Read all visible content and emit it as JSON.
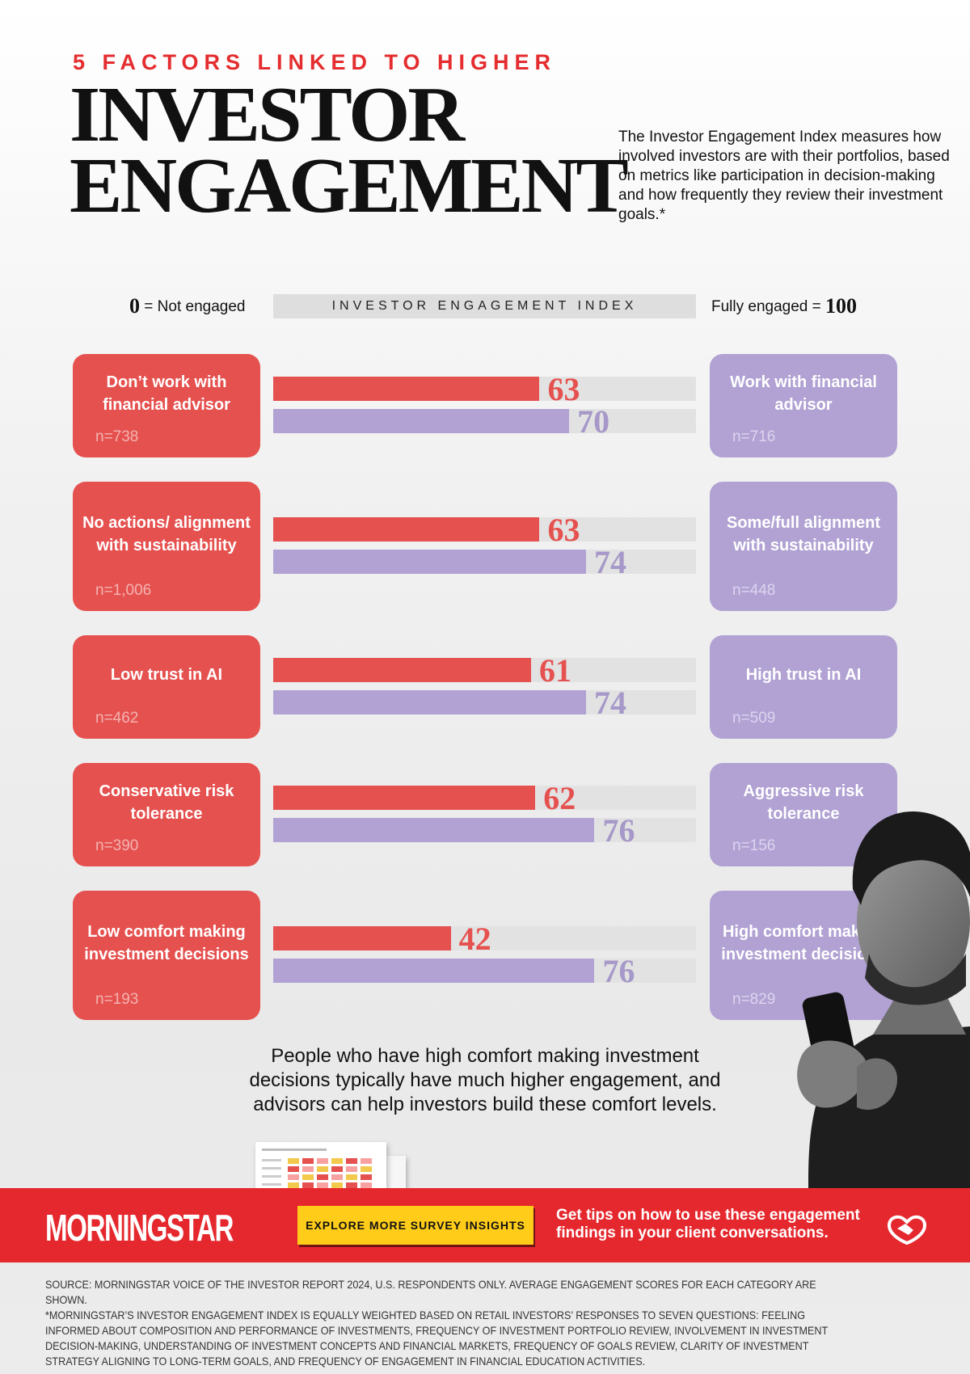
{
  "header": {
    "kicker": "5 FACTORS LINKED TO HIGHER",
    "title_line1": "INVESTOR",
    "title_line2": "ENGAGEMENT",
    "intro": "The Investor Engagement Index measures how involved investors are with their portfolios, based on metrics like participation in decision-making and how frequently they review their investment goals.*"
  },
  "scale": {
    "min_num": "0",
    "min_label": "= Not engaged",
    "bar_label": "INVESTOR ENGAGEMENT INDEX",
    "max_label": "Fully engaged =",
    "max_num": "100"
  },
  "chart_data": {
    "type": "bar",
    "orientation": "horizontal",
    "title": "INVESTOR ENGAGEMENT INDEX",
    "xlim": [
      0,
      100
    ],
    "colors": {
      "low_group": "#e5514f",
      "high_group": "#b1a2d3"
    },
    "groups": [
      {
        "low_label": "Don’t work with financial advisor",
        "low_n": "n=738",
        "low_value": 63,
        "high_label": "Work with financial advisor",
        "high_n": "n=716",
        "high_value": 70
      },
      {
        "low_label": "No actions/ alignment with sustainability",
        "low_n": "n=1,006",
        "low_value": 63,
        "high_label": "Some/full alignment with sustainability",
        "high_n": "n=448",
        "high_value": 74
      },
      {
        "low_label": "Low trust in AI",
        "low_n": "n=462",
        "low_value": 61,
        "high_label": "High trust in AI",
        "high_n": "n=509",
        "high_value": 74
      },
      {
        "low_label": "Conservative risk tolerance",
        "low_n": "n=390",
        "low_value": 62,
        "high_label": "Aggressive risk tolerance",
        "high_n": "n=156",
        "high_value": 76
      },
      {
        "low_label": "Low comfort making investment decisions",
        "low_n": "n=193",
        "low_value": 42,
        "high_label": "High comfort making investment decisions",
        "high_n": "n=829",
        "high_value": 76
      }
    ]
  },
  "takeaway": "People who have high comfort making investment decisions typically have much higher engagement, and advisors can help investors build these comfort levels.",
  "banner": {
    "logo": "MORNINGSTAR",
    "cta_label": "EXPLORE MORE SURVEY INSIGHTS",
    "text": "Get tips on how to use these engagement findings in your client conversations.",
    "icon": "handshake-icon"
  },
  "footnotes": {
    "source": "SOURCE: MORNINGSTAR VOICE OF THE INVESTOR REPORT 2024, U.S. RESPONDENTS ONLY. AVERAGE ENGAGEMENT SCORES FOR EACH CATEGORY ARE SHOWN.",
    "methodology": "*MORNINGSTAR’S INVESTOR ENGAGEMENT INDEX IS EQUALLY WEIGHTED BASED ON RETAIL INVESTORS’ RESPONSES TO SEVEN QUESTIONS: FEELING INFORMED ABOUT COMPOSITION AND PERFORMANCE OF INVESTMENTS, FREQUENCY OF INVESTMENT PORTFOLIO REVIEW, INVOLVEMENT IN INVESTMENT DECISION-MAKING, UNDERSTANDING OF INVESTMENT CONCEPTS AND FINANCIAL MARKETS, FREQUENCY OF GOALS REVIEW, CLARITY OF INVESTMENT STRATEGY ALIGNING TO LONG-TERM GOALS, AND FREQUENCY OF ENGAGEMENT IN FINANCIAL EDUCATION ACTIVITIES."
  }
}
